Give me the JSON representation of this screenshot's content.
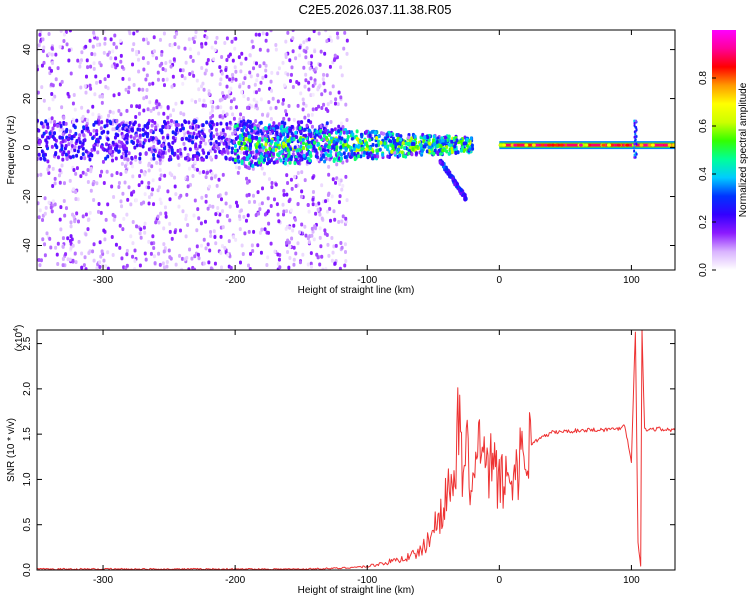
{
  "title": "C2E5.2026.037.11.38.R05",
  "chart_data": [
    {
      "type": "heatmap",
      "xlabel": "Height of straight line (km)",
      "ylabel": "Frequency (Hz)",
      "xlim": [
        -350,
        133
      ],
      "ylim": [
        -50,
        48
      ],
      "xticks": [
        -300,
        -200,
        -100,
        0,
        100
      ],
      "xtick_labels": [
        "-300",
        "-200",
        "-100",
        "0",
        "100"
      ],
      "yticks": [
        -40,
        -20,
        0,
        20,
        40
      ],
      "ytick_labels": [
        "-40",
        "-20",
        "0",
        "20",
        "40"
      ],
      "colorbar": {
        "label": "Normalized spectral amplitude",
        "range": [
          0,
          1
        ],
        "ticks": [
          0.0,
          0.2,
          0.4,
          0.6,
          0.8
        ],
        "tick_labels": [
          "0.0",
          "0.2",
          "0.4",
          "0.6",
          "0.8"
        ],
        "colormap": [
          "#ffffff",
          "#d9b3ff",
          "#8c1aff",
          "#3300ff",
          "#0033ff",
          "#00ccff",
          "#00ff99",
          "#33ff00",
          "#ccff00",
          "#ffff00",
          "#ff9900",
          "#ff0000",
          "#ff0099",
          "#ff00ff"
        ]
      },
      "features": [
        {
          "name": "scattered noise",
          "x_range": [
            -350,
            -115
          ],
          "freq_range": [
            -50,
            48
          ],
          "level": 0.15
        },
        {
          "name": "central band",
          "x_range": [
            -350,
            -120
          ],
          "freq_center": 3,
          "freq_halfwidth": 8,
          "level": 0.2
        },
        {
          "name": "signal cluster",
          "x_range": [
            -200,
            -20
          ],
          "freq_center": 1,
          "level": 0.4
        },
        {
          "name": "sideband tail",
          "x_range": [
            -45,
            -25
          ],
          "freq_range": [
            -21,
            -5
          ],
          "level": 0.2
        },
        {
          "name": "carrier line",
          "x_range": [
            0,
            133
          ],
          "freq_center": 1,
          "level": 0.9
        },
        {
          "name": "spike",
          "x": 103,
          "freq_range": [
            -5,
            11
          ],
          "level": 0.3
        }
      ]
    },
    {
      "type": "line",
      "xlabel": "Height of straight line (km)",
      "ylabel": "SNR (10 * v/v)",
      "y_multiplier": "(x10",
      "y_multiplier_exp": "4",
      "y_multiplier_close": ")",
      "xlim": [
        -350,
        133
      ],
      "ylim": [
        0,
        2.65
      ],
      "xticks": [
        -300,
        -200,
        -100,
        0,
        100
      ],
      "xtick_labels": [
        "-300",
        "-200",
        "-100",
        "0",
        "100"
      ],
      "yticks": [
        0.0,
        0.5,
        1.0,
        1.5,
        2.0,
        2.5
      ],
      "ytick_labels": [
        "0.0",
        "0.5",
        "1.0",
        "1.5",
        "2.0",
        "2.5"
      ],
      "color": "#ee3333",
      "x": [
        -350,
        -300,
        -250,
        -200,
        -150,
        -120,
        -110,
        -100,
        -90,
        -80,
        -70,
        -60,
        -55,
        -50,
        -45,
        -40,
        -35,
        -30,
        -28,
        -25,
        -20,
        -15,
        -10,
        -5,
        0,
        5,
        10,
        15,
        20,
        25,
        30,
        35,
        40,
        50,
        60,
        70,
        80,
        90,
        95,
        100,
        103,
        105,
        107,
        108,
        110,
        115,
        120,
        125,
        133
      ],
      "values": [
        0.01,
        0.01,
        0.01,
        0.01,
        0.01,
        0.02,
        0.03,
        0.04,
        0.07,
        0.1,
        0.14,
        0.2,
        0.3,
        0.45,
        0.6,
        0.9,
        0.75,
        1.83,
        0.8,
        1.3,
        0.9,
        1.45,
        1.0,
        1.2,
        0.95,
        1.0,
        1.05,
        1.2,
        1.32,
        1.4,
        1.45,
        1.48,
        1.52,
        1.53,
        1.54,
        1.55,
        1.55,
        1.56,
        1.6,
        1.2,
        2.65,
        0.3,
        0.05,
        2.65,
        1.55,
        1.55,
        1.56,
        1.55,
        1.54
      ]
    }
  ]
}
